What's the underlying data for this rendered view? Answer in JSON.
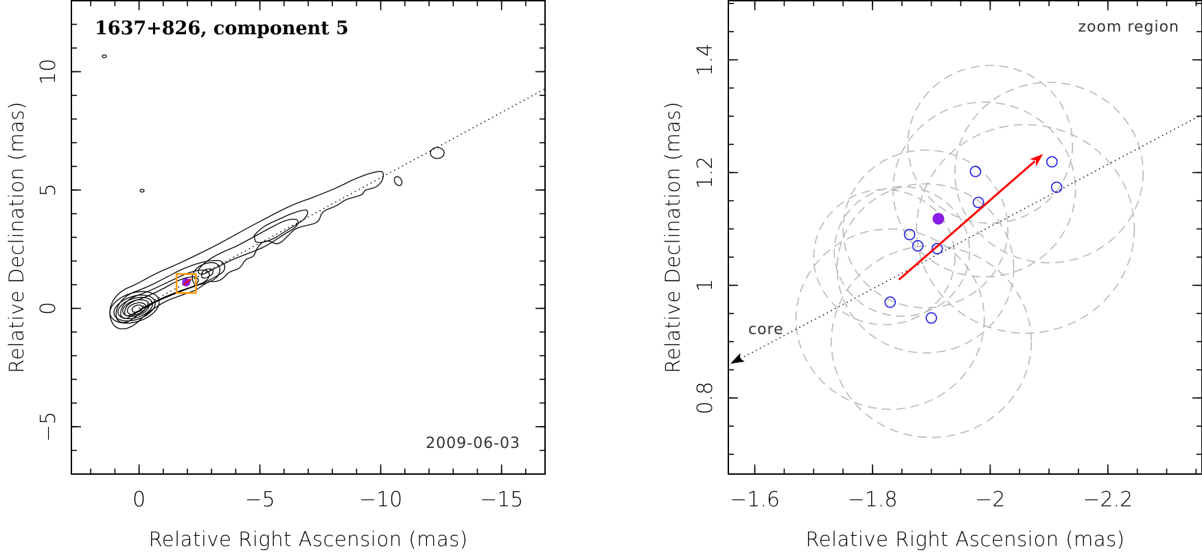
{
  "chart_data": [
    {
      "type": "contour",
      "title": "1637+826, component 5",
      "date": "2009-06-03",
      "xlabel": "Relative Right Ascension (mas)",
      "ylabel": "Relative Declination (mas)",
      "xlim": [
        2.8,
        -16.8
      ],
      "ylim": [
        -7.0,
        13.0
      ],
      "xticks": [
        0,
        -5,
        -10,
        -15
      ],
      "xtick_labels": [
        "0",
        "−5",
        "−10",
        "−15"
      ],
      "yticks": [
        -5,
        0,
        5,
        10
      ],
      "ytick_labels": [
        "−5",
        "0",
        "5",
        "10"
      ],
      "component_position": [
        -1.95,
        1.1
      ],
      "zoom_box": {
        "x": [
          -1.55,
          -2.35
        ],
        "y": [
          0.65,
          1.45
        ]
      },
      "jet_axis_slope": 0.552,
      "colors": {
        "box": "#ff9900",
        "marker": "#8a1ee6",
        "arrow": "#ff0000"
      }
    },
    {
      "type": "scatter",
      "title": "zoom region",
      "core_label": "core",
      "xlabel": "Relative Right Ascension (mas)",
      "ylabel": "Relative Declination (mas)",
      "xlim": [
        -1.555,
        -2.36
      ],
      "ylim": [
        0.665,
        1.505
      ],
      "xticks": [
        -1.6,
        -1.8,
        -2.0,
        -2.2
      ],
      "xtick_labels": [
        "−1.6",
        "−1.8",
        "−2",
        "−2.2"
      ],
      "yticks": [
        0.8,
        1.0,
        1.2,
        1.4
      ],
      "ytick_labels": [
        "0.8",
        "1",
        "1.2",
        "1.4"
      ],
      "series": [
        {
          "name": "epoch positions",
          "marker": "open-circle",
          "color": "#1a1ae6",
          "points": [
            [
              -1.83,
              0.97
            ],
            [
              -1.9,
              0.942
            ],
            [
              -1.863,
              1.09
            ],
            [
              -1.877,
              1.07
            ],
            [
              -1.91,
              1.065
            ],
            [
              -1.975,
              1.202
            ],
            [
              -1.98,
              1.147
            ],
            [
              -2.105,
              1.219
            ],
            [
              -2.113,
              1.174
            ]
          ]
        },
        {
          "name": "mean position",
          "marker": "filled-circle",
          "color": "#8a1ee6",
          "points": [
            [
              -1.912,
              1.118
            ]
          ]
        }
      ],
      "uncertainty_circles": [
        {
          "center": [
            -1.82,
            1.05
          ],
          "radius": 0.12
        },
        {
          "center": [
            -1.85,
            1.06
          ],
          "radius": 0.115
        },
        {
          "center": [
            -1.83,
            0.94
          ],
          "radius": 0.16
        },
        {
          "center": [
            -1.89,
            1.03
          ],
          "radius": 0.15
        },
        {
          "center": [
            -1.89,
            1.1
          ],
          "radius": 0.14
        },
        {
          "center": [
            -1.99,
            1.17
          ],
          "radius": 0.155
        },
        {
          "center": [
            -2.1,
            1.2
          ],
          "radius": 0.16
        },
        {
          "center": [
            -2.06,
            1.1
          ],
          "radius": 0.185
        },
        {
          "center": [
            -2.0,
            1.25
          ],
          "radius": 0.14
        },
        {
          "center": [
            -1.9,
            0.9
          ],
          "radius": 0.17
        }
      ],
      "velocity_arrow": {
        "from": [
          -1.845,
          1.01
        ],
        "to": [
          -2.09,
          1.233
        ],
        "color": "#ff0000"
      },
      "jet_axis_slope": 0.552
    }
  ]
}
